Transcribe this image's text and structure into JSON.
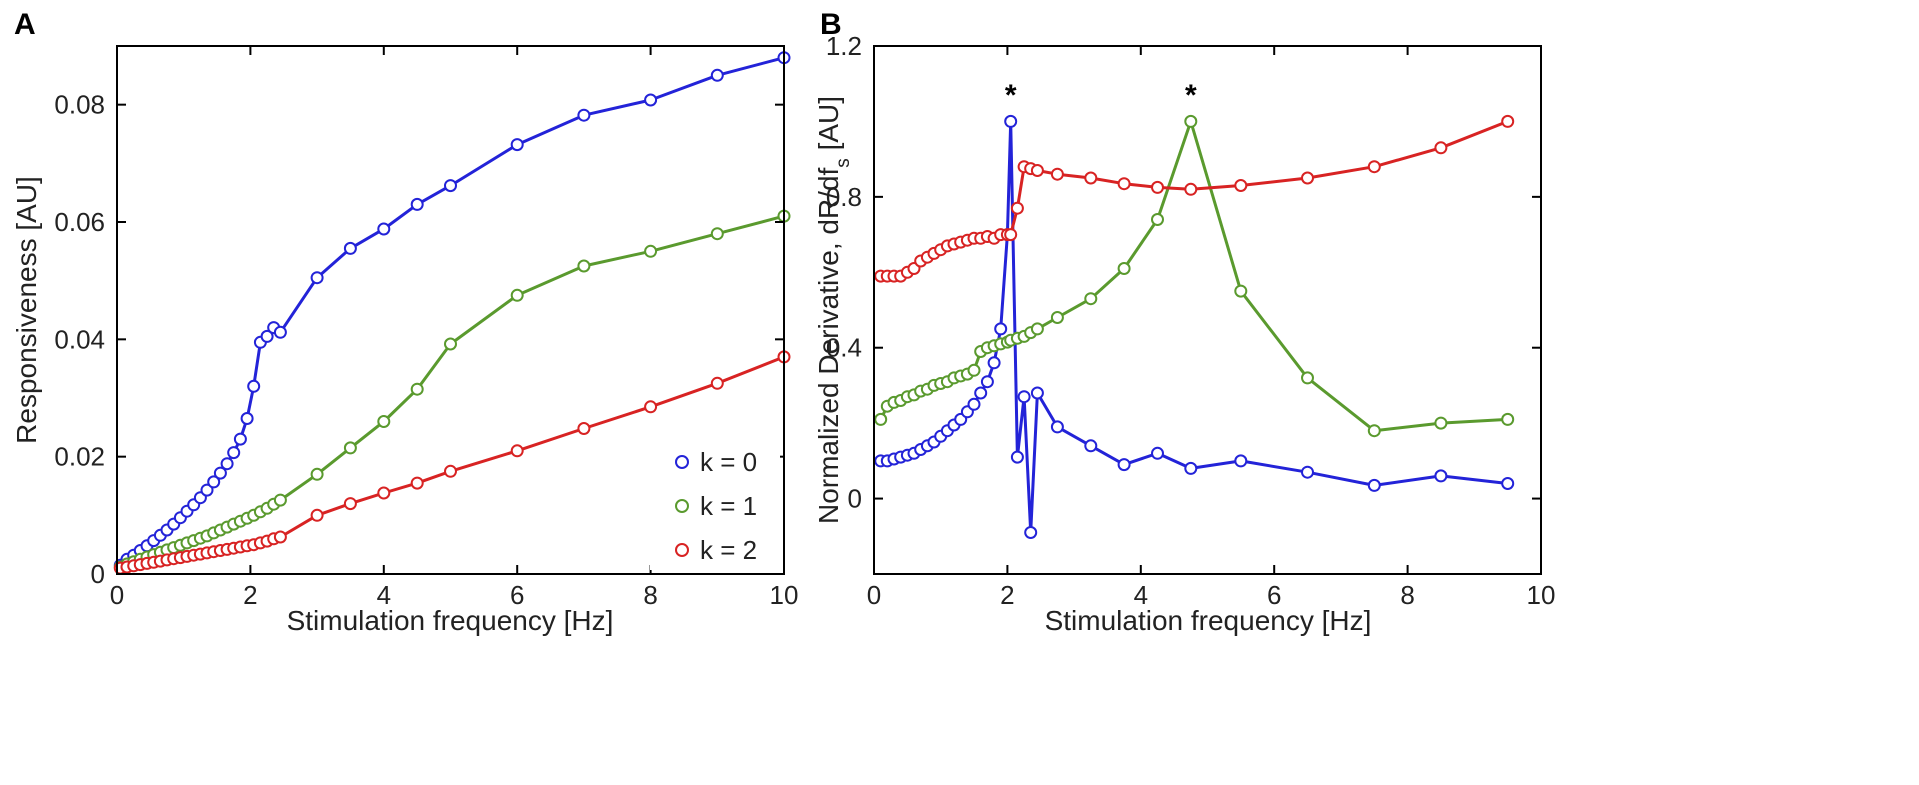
{
  "chart_data": [
    {
      "type": "line",
      "panel_label": "A",
      "xlabel": "Stimulation frequency [Hz]",
      "ylabel": "Responsiveness [AU]",
      "xlim": [
        0,
        10
      ],
      "ylim": [
        0,
        0.09
      ],
      "xticks": [
        0,
        2,
        4,
        6,
        8,
        10
      ],
      "yticks": [
        0,
        0.02,
        0.04,
        0.06,
        0.08
      ],
      "ytick_labels": [
        "0",
        "0.02",
        "0.04",
        "0.06",
        "0.08"
      ],
      "grid": false,
      "legend_position": "bottom-right",
      "series": [
        {
          "name": "k = 0",
          "color": "#2323d8",
          "x": [
            0.05,
            0.15,
            0.25,
            0.35,
            0.45,
            0.55,
            0.65,
            0.75,
            0.85,
            0.95,
            1.05,
            1.15,
            1.25,
            1.35,
            1.45,
            1.55,
            1.65,
            1.75,
            1.85,
            1.95,
            2.05,
            2.15,
            2.25,
            2.35,
            2.45,
            3,
            3.5,
            4,
            4.5,
            5,
            6,
            7,
            8,
            9,
            10
          ],
          "y": [
            0.0015,
            0.0025,
            0.0032,
            0.004,
            0.0048,
            0.0057,
            0.0066,
            0.0075,
            0.0085,
            0.0096,
            0.0107,
            0.0118,
            0.013,
            0.0143,
            0.0157,
            0.0172,
            0.0188,
            0.0207,
            0.023,
            0.0265,
            0.032,
            0.0395,
            0.0405,
            0.042,
            0.0412,
            0.0505,
            0.0555,
            0.0588,
            0.063,
            0.0662,
            0.0732,
            0.0782,
            0.0808,
            0.085,
            0.088
          ]
        },
        {
          "name": "k = 1",
          "color": "#5a9a2e",
          "x": [
            0.05,
            0.15,
            0.25,
            0.35,
            0.45,
            0.55,
            0.65,
            0.75,
            0.85,
            0.95,
            1.05,
            1.15,
            1.25,
            1.35,
            1.45,
            1.55,
            1.65,
            1.75,
            1.85,
            1.95,
            2.05,
            2.15,
            2.25,
            2.35,
            2.45,
            3,
            3.5,
            4,
            4.5,
            5,
            6,
            7,
            8,
            9,
            10
          ],
          "y": [
            0.0012,
            0.0017,
            0.0021,
            0.0025,
            0.0029,
            0.0033,
            0.0037,
            0.0041,
            0.0045,
            0.0049,
            0.0053,
            0.0057,
            0.0061,
            0.0065,
            0.007,
            0.0075,
            0.008,
            0.0085,
            0.009,
            0.0095,
            0.01,
            0.0106,
            0.0112,
            0.0119,
            0.0126,
            0.017,
            0.0215,
            0.026,
            0.0315,
            0.0392,
            0.0475,
            0.0525,
            0.055,
            0.058,
            0.061
          ]
        },
        {
          "name": "k = 2",
          "color": "#d82323",
          "x": [
            0.05,
            0.15,
            0.25,
            0.35,
            0.45,
            0.55,
            0.65,
            0.75,
            0.85,
            0.95,
            1.05,
            1.15,
            1.25,
            1.35,
            1.45,
            1.55,
            1.65,
            1.75,
            1.85,
            1.95,
            2.05,
            2.15,
            2.25,
            2.35,
            2.45,
            3,
            3.5,
            4,
            4.5,
            5,
            6,
            7,
            8,
            9,
            10
          ],
          "y": [
            0.001,
            0.0012,
            0.0014,
            0.0016,
            0.0018,
            0.002,
            0.0022,
            0.0024,
            0.0026,
            0.0028,
            0.003,
            0.0032,
            0.0034,
            0.0036,
            0.0038,
            0.004,
            0.0042,
            0.0044,
            0.0046,
            0.0048,
            0.005,
            0.0053,
            0.0056,
            0.006,
            0.0063,
            0.01,
            0.012,
            0.0138,
            0.0155,
            0.0175,
            0.021,
            0.0248,
            0.0285,
            0.0325,
            0.037
          ]
        }
      ]
    },
    {
      "type": "line",
      "panel_label": "B",
      "xlabel": "Stimulation frequency [Hz]",
      "ylabel_main": "Normalized Derivative, dR/df",
      "ylabel_sub": "s",
      "ylabel_tail": " [AU]",
      "xlim": [
        0,
        10
      ],
      "ylim": [
        -0.2,
        1.2
      ],
      "xticks": [
        0,
        2,
        4,
        6,
        8,
        10
      ],
      "yticks": [
        0,
        0.4,
        0.8,
        1.2
      ],
      "ytick_labels": [
        "0",
        "0.4",
        "0.8",
        "1.2"
      ],
      "grid": false,
      "annotations": [
        {
          "text": "*",
          "x": 2.05,
          "y": 1.07
        },
        {
          "text": "*",
          "x": 4.75,
          "y": 1.07
        }
      ],
      "series": [
        {
          "name": "k = 0",
          "color": "#2323d8",
          "x": [
            0.1,
            0.2,
            0.3,
            0.4,
            0.5,
            0.6,
            0.7,
            0.8,
            0.9,
            1.0,
            1.1,
            1.2,
            1.3,
            1.4,
            1.5,
            1.6,
            1.7,
            1.8,
            1.9,
            2.0,
            2.05,
            2.15,
            2.25,
            2.35,
            2.45,
            2.75,
            3.25,
            3.75,
            4.25,
            4.75,
            5.5,
            6.5,
            7.5,
            8.5,
            9.5
          ],
          "y": [
            0.1,
            0.1,
            0.105,
            0.11,
            0.115,
            0.12,
            0.13,
            0.14,
            0.15,
            0.165,
            0.18,
            0.195,
            0.21,
            0.23,
            0.25,
            0.28,
            0.31,
            0.36,
            0.45,
            0.7,
            1.0,
            0.11,
            0.27,
            -0.09,
            0.28,
            0.19,
            0.14,
            0.09,
            0.12,
            0.08,
            0.1,
            0.07,
            0.035,
            0.06,
            0.04
          ]
        },
        {
          "name": "k = 1",
          "color": "#5a9a2e",
          "x": [
            0.1,
            0.2,
            0.3,
            0.4,
            0.5,
            0.6,
            0.7,
            0.8,
            0.9,
            1.0,
            1.1,
            1.2,
            1.3,
            1.4,
            1.5,
            1.6,
            1.7,
            1.8,
            1.9,
            2.0,
            2.05,
            2.15,
            2.25,
            2.35,
            2.45,
            2.75,
            3.25,
            3.75,
            4.25,
            4.75,
            5.5,
            6.5,
            7.5,
            8.5,
            9.5
          ],
          "y": [
            0.21,
            0.245,
            0.255,
            0.26,
            0.27,
            0.275,
            0.285,
            0.29,
            0.3,
            0.305,
            0.31,
            0.32,
            0.325,
            0.33,
            0.34,
            0.39,
            0.4,
            0.405,
            0.41,
            0.415,
            0.42,
            0.425,
            0.43,
            0.44,
            0.45,
            0.48,
            0.53,
            0.61,
            0.74,
            1.0,
            0.55,
            0.32,
            0.18,
            0.2,
            0.21
          ]
        },
        {
          "name": "k = 2",
          "color": "#d82323",
          "x": [
            0.1,
            0.2,
            0.3,
            0.4,
            0.5,
            0.6,
            0.7,
            0.8,
            0.9,
            1.0,
            1.1,
            1.2,
            1.3,
            1.4,
            1.5,
            1.6,
            1.7,
            1.8,
            1.9,
            2.0,
            2.05,
            2.15,
            2.25,
            2.35,
            2.45,
            2.75,
            3.25,
            3.75,
            4.25,
            4.75,
            5.5,
            6.5,
            7.5,
            8.5,
            9.5
          ],
          "y": [
            0.59,
            0.59,
            0.59,
            0.59,
            0.6,
            0.61,
            0.63,
            0.64,
            0.65,
            0.66,
            0.67,
            0.675,
            0.68,
            0.685,
            0.69,
            0.69,
            0.695,
            0.69,
            0.7,
            0.7,
            0.7,
            0.77,
            0.88,
            0.875,
            0.87,
            0.86,
            0.85,
            0.835,
            0.825,
            0.82,
            0.83,
            0.85,
            0.88,
            0.93,
            1.0
          ]
        }
      ]
    }
  ]
}
